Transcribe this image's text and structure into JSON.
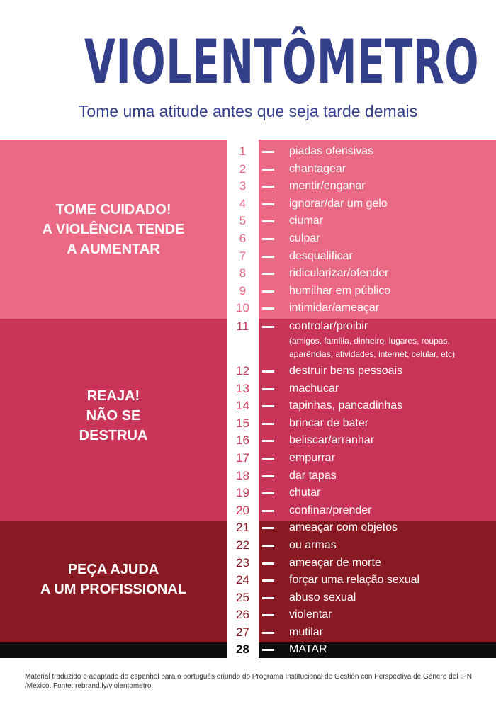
{
  "title": "VIOLENTÔMETRO",
  "subtitle": "Tome uma atitude antes que seja tarde demais",
  "zones": [
    {
      "label_lines": [
        "TOME CUIDADO!",
        "A VIOLÊNCIA TENDE",
        "A AUMENTAR"
      ],
      "color": "#ea6a85"
    },
    {
      "label_lines": [
        "REAJA!",
        "NÃO SE",
        "DESTRUA"
      ],
      "color": "#c93558"
    },
    {
      "label_lines": [
        "PEÇA AJUDA",
        "A UM PROFISSIONAL"
      ],
      "color": "#881a24"
    },
    {
      "label_lines": [],
      "color": "#0d0d0d"
    }
  ],
  "items": [
    {
      "number": "1",
      "text": "piadas ofensivas"
    },
    {
      "number": "2",
      "text": "chantagear"
    },
    {
      "number": "3",
      "text": "mentir/enganar"
    },
    {
      "number": "4",
      "text": "ignorar/dar um gelo"
    },
    {
      "number": "5",
      "text": "ciumar"
    },
    {
      "number": "6",
      "text": "culpar"
    },
    {
      "number": "7",
      "text": "desqualificar"
    },
    {
      "number": "8",
      "text": "ridicularizar/ofender"
    },
    {
      "number": "9",
      "text": "humilhar em público"
    },
    {
      "number": "10",
      "text": "intimidar/ameaçar"
    },
    {
      "number": "11",
      "text": "controlar/proibir",
      "note": "(amigos, família, dinheiro, lugares, roupas, aparências, atividades, internet, celular, etc)"
    },
    {
      "number": "12",
      "text": "destruir bens pessoais"
    },
    {
      "number": "13",
      "text": "machucar"
    },
    {
      "number": "14",
      "text": "tapinhas, pancadinhas"
    },
    {
      "number": "15",
      "text": "brincar de bater"
    },
    {
      "number": "16",
      "text": "beliscar/arranhar"
    },
    {
      "number": "17",
      "text": "empurrar"
    },
    {
      "number": "18",
      "text": "dar tapas"
    },
    {
      "number": "19",
      "text": "chutar"
    },
    {
      "number": "20",
      "text": "confinar/prender"
    },
    {
      "number": "21",
      "text": "ameaçar com objetos"
    },
    {
      "number": "22",
      "text": "ou armas"
    },
    {
      "number": "23",
      "text": "ameaçar de morte"
    },
    {
      "number": "24",
      "text": "forçar uma relação sexual"
    },
    {
      "number": "25",
      "text": "abuso sexual"
    },
    {
      "number": "26",
      "text": "violentar"
    },
    {
      "number": "27",
      "text": "mutilar"
    },
    {
      "number": "28",
      "text": "MATAR"
    }
  ],
  "footer": "Material traduzido e adaptado do espanhol para o português oriundo do Programa Institucional de Gestión con Perspectiva de Género del IPN /México. Fonte: rebrand.ly/violentometro"
}
